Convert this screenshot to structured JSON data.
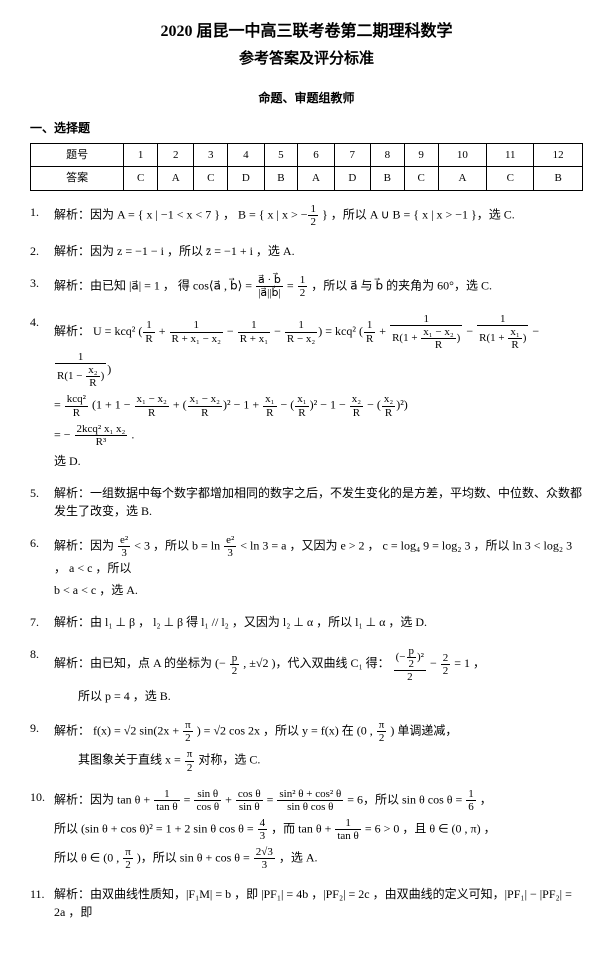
{
  "title_main": "2020 届昆一中高三联考卷第二期理科数学",
  "title_sub": "参考答案及评分标准",
  "committee": "命题、审题组教师",
  "section_heading": "一、选择题",
  "answer_table": {
    "header_label": "题号",
    "answer_label": "答案",
    "numbers": [
      "1",
      "2",
      "3",
      "4",
      "5",
      "6",
      "7",
      "8",
      "9",
      "10",
      "11",
      "12"
    ],
    "answers": [
      "C",
      "A",
      "C",
      "D",
      "B",
      "A",
      "D",
      "B",
      "C",
      "A",
      "C",
      "B"
    ]
  },
  "items": {
    "i1": {
      "num": "1.",
      "p1a": "解析：因为 A = { x | −1 < x < 7 } ，  B = ",
      "p1b": "，所以 A ∪ B = { x | x > −1 }，选 C."
    },
    "i2": {
      "num": "2.",
      "p1": "解析：因为 z = −1 − i ，所以 z̄ = −1 + i ，选 A."
    },
    "i3": {
      "num": "3.",
      "p1a": "解析：由已知 |a⃗| = 1 ， 得 cos⟨a⃗ , b⃗⟩ = ",
      "p1b": "，所以 a⃗ 与 b⃗ 的夹角为 60°，选 C."
    },
    "i4": {
      "num": "4.",
      "p1": "解析：",
      "line_end": "选 D."
    },
    "i5": {
      "num": "5.",
      "p1": "解析：一组数据中每个数字都增加相同的数字之后，不发生变化的是方差，平均数、中位数、众数都发生了改变，选 B."
    },
    "i6": {
      "num": "6.",
      "p1a": "解析：因为 ",
      "p1b": " < 3 ，所以 b = ln",
      "p1c": " < ln 3 = a ，又因为 e > 2 ， c = log₄ 9 = log₂ 3 ，所以 ln 3 < log₂ 3 ， a < c ，所以",
      "p2": "b < a < c ，选 A."
    },
    "i7": {
      "num": "7.",
      "p1": "解析：由 l₁ ⊥ β ， l₂ ⊥ β 得 l₁ // l₂ ，又因为 l₂ ⊥ α ，所以 l₁ ⊥ α ，选 D."
    },
    "i8": {
      "num": "8.",
      "p1a": "解析：由已知，点 A 的坐标为 (−",
      "p1b": " , ±√2 )，代入双曲线 C₁ 得：",
      "p2": "所以 p = 4 ，选 B."
    },
    "i9": {
      "num": "9.",
      "p1a": "解析： f(x) = √2 sin(2x + ",
      "p1b": ") = √2 cos 2x ，所以 y = f(x) 在 (0 , ",
      "p1c": ") 单调递减，",
      "p2a": "其图象关于直线 x = ",
      "p2b": " 对称，选 C."
    },
    "i10": {
      "num": "10.",
      "p1a": "解析：因为 tan θ + ",
      "p1b": " = ",
      "p1c": " = 6，所以 sin θ cos θ = ",
      "p1d": " ，",
      "p2a": "所以 (sin θ + cos θ)² = 1 + 2 sin θ cos θ = ",
      "p2b": "，而 tan θ + ",
      "p2c": " = 6 > 0 ，且 θ ∈ (0 , π) ，",
      "p3a": "所以  θ ∈ (0 , ",
      "p3b": ")，所以 sin θ + cos θ = ",
      "p3c": " ，选 A."
    },
    "i11": {
      "num": "11.",
      "p1": "解析：由双曲线性质知，|F₁M| = b ，即 |PF₁| = 4b ，|PF₂| = 2c ，由双曲线的定义可知，|PF₁| − |PF₂| = 2a ，即"
    }
  }
}
